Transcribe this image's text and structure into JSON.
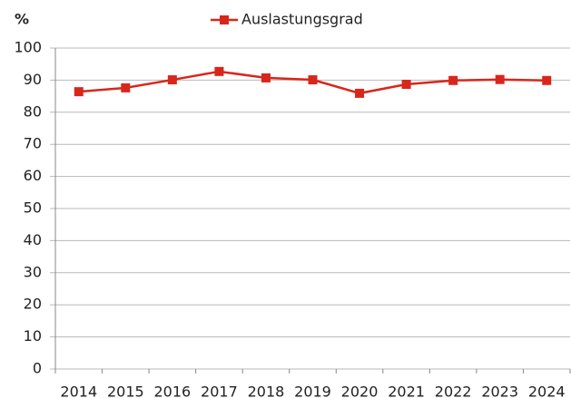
{
  "chart_data": {
    "type": "line",
    "y_axis_label": "%",
    "categories": [
      "2014",
      "2015",
      "2016",
      "2017",
      "2018",
      "2019",
      "2020",
      "2021",
      "2022",
      "2023",
      "2024"
    ],
    "series": [
      {
        "name": "Auslastungsgrad",
        "color": "#d9261c",
        "values": [
          86.4,
          87.6,
          90.1,
          92.7,
          90.7,
          90.1,
          85.9,
          88.7,
          89.9,
          90.2,
          89.9
        ]
      }
    ],
    "ylim": [
      0,
      100
    ],
    "yticks": [
      0,
      10,
      20,
      30,
      40,
      50,
      60,
      70,
      80,
      90,
      100
    ],
    "grid": true,
    "legend": "top"
  }
}
